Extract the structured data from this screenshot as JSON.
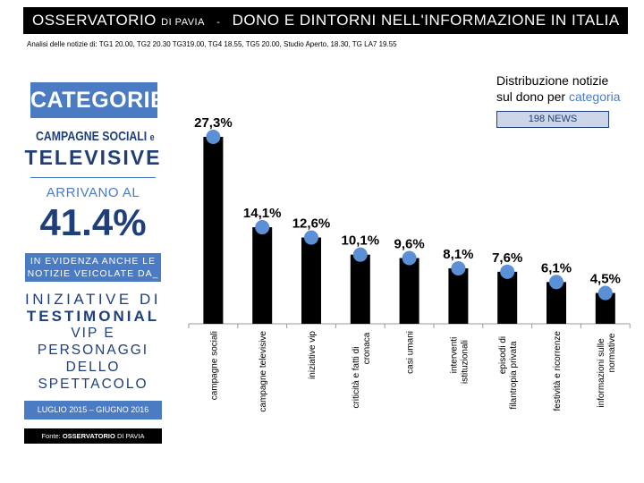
{
  "header": {
    "brand": "OSSERVATORIO",
    "brand_sub": "DI PAVIA",
    "separator": "-",
    "title": "DONO E DINTORNI NELL'INFORMAZIONE IN ITALIA"
  },
  "analysis_text": "Analisi delle notizie di: TG1 20.00, TG2 20.30 TG319.00, TG4 18.55, TG5 20.00, Studio Aperto, 18.30, TG LA7 19.55",
  "sidebar": {
    "category_label": "CATEGORIE_",
    "campagne_sociali": "CAMPAGNE SOCIALI",
    "e": "e",
    "televisive": "TELEVISIVE",
    "arrivano": "ARRIVANO AL",
    "big_value": "41.4%",
    "evidenza": "IN EVIDENZA ANCHE LE NOTIZIE VEICOLATE DA_",
    "iniziative_di": "INIZIATIVE DI",
    "testimonial": "TESTIMONIAL",
    "vip": "VIP E PERSONAGGI",
    "spettacolo": "DELLO SPETTACOLO",
    "period": "LUGLIO 2015 – GIUGNO 2016",
    "fonte_prefix": "Fonte:",
    "fonte_name": "OSSERVATORIO",
    "fonte_suffix": "DI PAVIA"
  },
  "distribution": {
    "line1": "Distribuzione notizie",
    "line2": "sul dono per",
    "line2_highlight": "categoria",
    "news_count": "198 NEWS"
  },
  "colors": {
    "accent": "#4a7bc3",
    "dark_blue": "#1f3f7a",
    "bar": "#000000",
    "marker": "#5b8fd6"
  },
  "chart_data": {
    "type": "bar",
    "categories": [
      "campagne sociali",
      "campagne televisive",
      "iniziative vip",
      "criticità e fatti di cronaca",
      "casi umani",
      "interventi istituzionali",
      "episodi di filantropia privata",
      "festività e ricorrenze",
      "informazioni sulle normative"
    ],
    "values": [
      27.3,
      14.1,
      12.6,
      10.1,
      9.6,
      8.1,
      7.6,
      6.1,
      4.5
    ],
    "value_labels": [
      "27,3%",
      "14,1%",
      "12,6%",
      "10,1%",
      "9,6%",
      "8,1%",
      "7,6%",
      "6,1%",
      "4,5%"
    ],
    "ylim": [
      0,
      30
    ],
    "grid": false,
    "legend": "none"
  }
}
